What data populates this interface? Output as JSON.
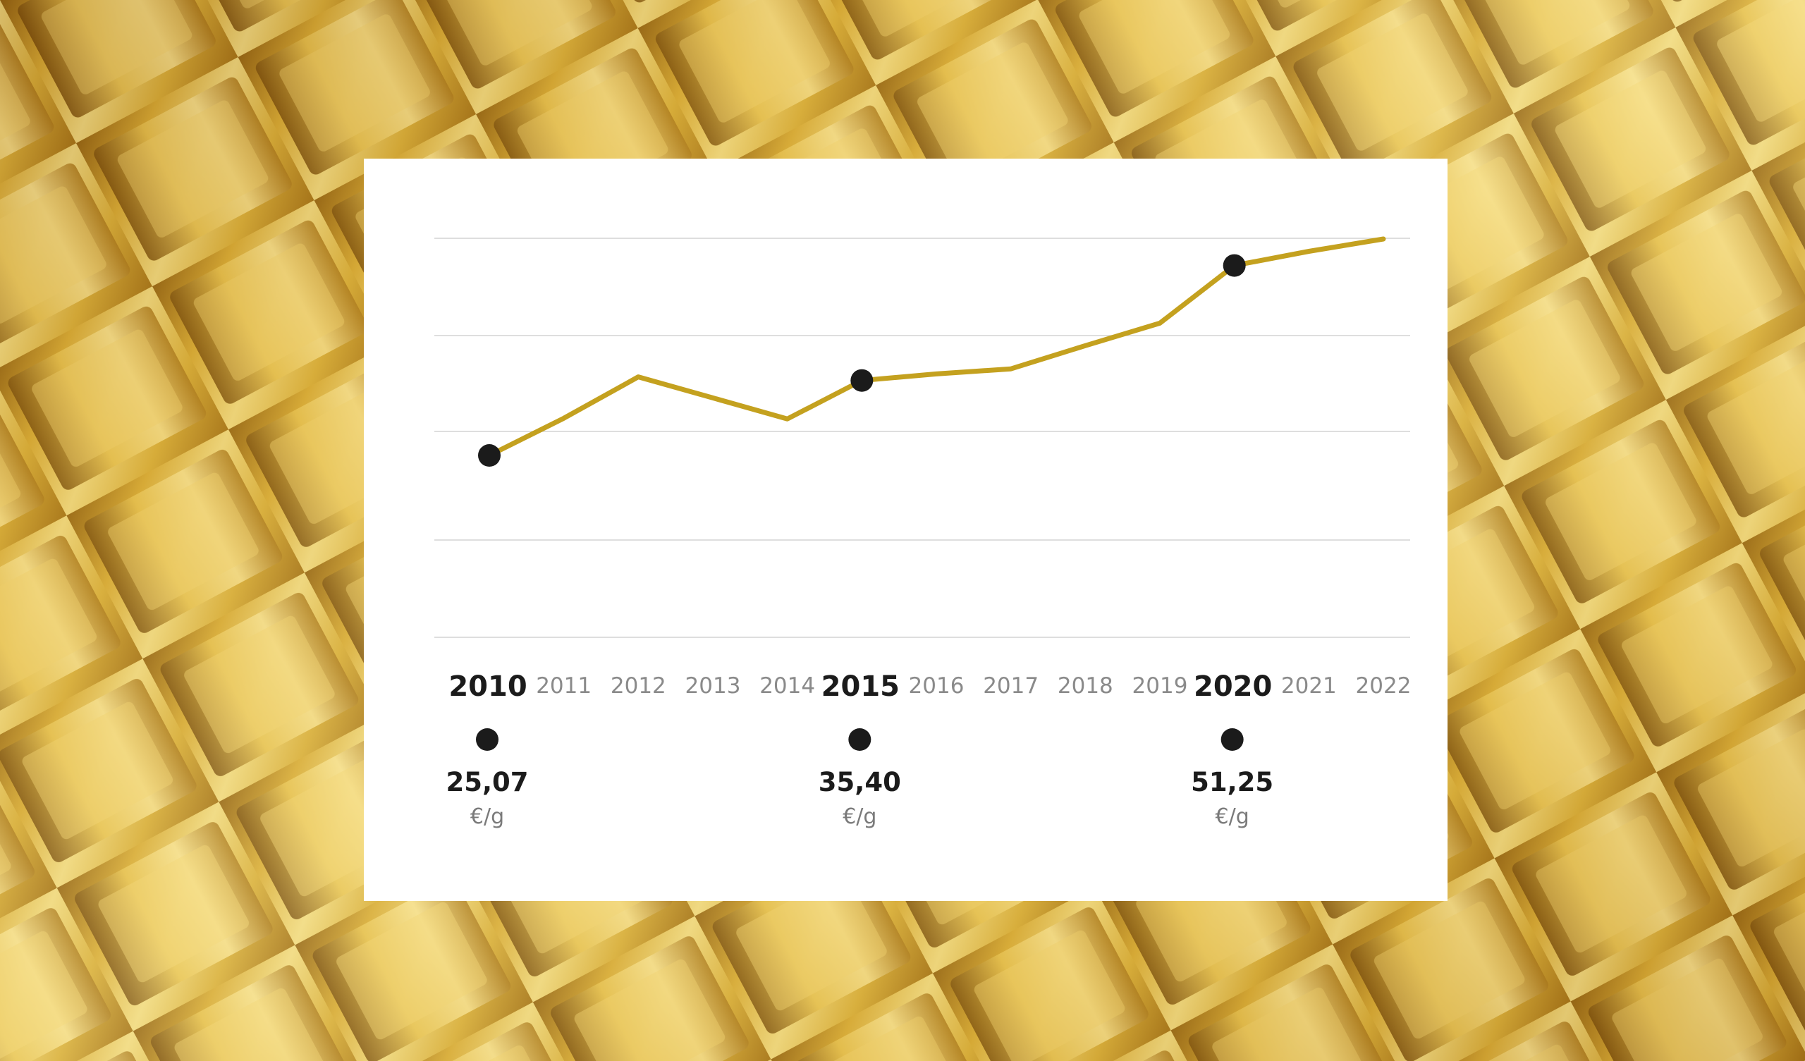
{
  "colors": {
    "line": "#c4a11f",
    "marker": "#1b1b1b",
    "grid": "#d4d4d4",
    "card": "#ffffff"
  },
  "chart_data": {
    "type": "line",
    "title": "",
    "xlabel": "",
    "ylabel": "",
    "x": [
      "2010",
      "2011",
      "2012",
      "2013",
      "2014",
      "2015",
      "2016",
      "2017",
      "2018",
      "2019",
      "2020",
      "2021",
      "2022"
    ],
    "series": [
      {
        "values": [
          25.07,
          30.2,
          35.9,
          33.0,
          30.1,
          35.4,
          36.3,
          37.0,
          40.2,
          43.3,
          51.25,
          53.2,
          54.9
        ]
      }
    ],
    "ylim": [
      0,
      55
    ],
    "grid": true,
    "highlights": [
      {
        "year": "2010",
        "value": "25,07",
        "unit": "€/g"
      },
      {
        "year": "2015",
        "value": "35,40",
        "unit": "€/g"
      },
      {
        "year": "2020",
        "value": "51,25",
        "unit": "€/g"
      }
    ]
  }
}
